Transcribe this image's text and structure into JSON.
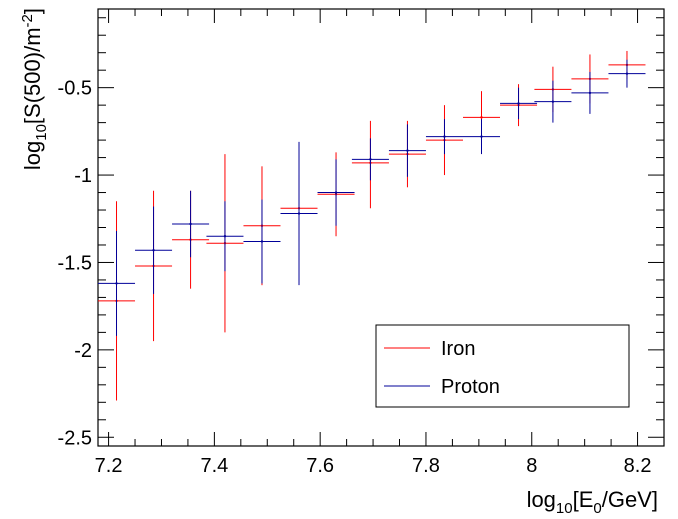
{
  "chart_data": {
    "type": "scatter",
    "xlabel": {
      "base": "log",
      "sub": "10",
      "main": "[E",
      "sub2": "0",
      "tail": "/GeV]"
    },
    "ylabel": {
      "base": "log",
      "sub": "10",
      "main": "[S(500)/m",
      "sup": "-2",
      "tail": "]"
    },
    "xlim": [
      7.18,
      8.25
    ],
    "ylim": [
      -2.55,
      -0.05
    ],
    "x_tick_labels": [
      "7.2",
      "7.4",
      "7.6",
      "7.8",
      "8",
      "8.2"
    ],
    "x_ticks": [
      7.2,
      7.4,
      7.6,
      7.8,
      8.0,
      8.2
    ],
    "y_tick_labels": [
      "-0.5",
      "-1",
      "-1.5",
      "-2",
      "-2.5"
    ],
    "y_ticks": [
      -0.5,
      -1.0,
      -1.5,
      -2.0,
      -2.5
    ],
    "grid": false,
    "legend_position": "bottom-right",
    "series": [
      {
        "name": "Iron",
        "color": "#ff0000",
        "points": [
          {
            "x": 7.215,
            "y": -1.72,
            "xerr": 0.035,
            "yerr_lo": 0.57,
            "yerr_hi": 0.57
          },
          {
            "x": 7.285,
            "y": -1.52,
            "xerr": 0.035,
            "yerr_lo": 0.43,
            "yerr_hi": 0.43
          },
          {
            "x": 7.355,
            "y": -1.37,
            "xerr": 0.035,
            "yerr_lo": 0.28,
            "yerr_hi": 0.28
          },
          {
            "x": 7.42,
            "y": -1.39,
            "xerr": 0.035,
            "yerr_lo": 0.51,
            "yerr_hi": 0.51
          },
          {
            "x": 7.49,
            "y": -1.29,
            "xerr": 0.035,
            "yerr_lo": 0.34,
            "yerr_hi": 0.34
          },
          {
            "x": 7.56,
            "y": -1.19,
            "xerr": 0.035,
            "yerr_lo": 0.19,
            "yerr_hi": 0.19
          },
          {
            "x": 7.63,
            "y": -1.11,
            "xerr": 0.035,
            "yerr_lo": 0.24,
            "yerr_hi": 0.24
          },
          {
            "x": 7.695,
            "y": -0.93,
            "xerr": 0.035,
            "yerr_lo": 0.26,
            "yerr_hi": 0.24
          },
          {
            "x": 7.765,
            "y": -0.88,
            "xerr": 0.035,
            "yerr_lo": 0.19,
            "yerr_hi": 0.19
          },
          {
            "x": 7.835,
            "y": -0.8,
            "xerr": 0.035,
            "yerr_lo": 0.2,
            "yerr_hi": 0.2
          },
          {
            "x": 7.905,
            "y": -0.67,
            "xerr": 0.035,
            "yerr_lo": 0.15,
            "yerr_hi": 0.15
          },
          {
            "x": 7.975,
            "y": -0.6,
            "xerr": 0.035,
            "yerr_lo": 0.12,
            "yerr_hi": 0.12
          },
          {
            "x": 8.04,
            "y": -0.51,
            "xerr": 0.035,
            "yerr_lo": 0.13,
            "yerr_hi": 0.13
          },
          {
            "x": 8.11,
            "y": -0.45,
            "xerr": 0.035,
            "yerr_lo": 0.14,
            "yerr_hi": 0.14
          },
          {
            "x": 8.18,
            "y": -0.37,
            "xerr": 0.035,
            "yerr_lo": 0.08,
            "yerr_hi": 0.08
          }
        ]
      },
      {
        "name": "Proton",
        "color": "#000099",
        "points": [
          {
            "x": 7.215,
            "y": -1.62,
            "xerr": 0.035,
            "yerr_lo": 0.3,
            "yerr_hi": 0.3
          },
          {
            "x": 7.285,
            "y": -1.43,
            "xerr": 0.035,
            "yerr_lo": 0.25,
            "yerr_hi": 0.25
          },
          {
            "x": 7.355,
            "y": -1.28,
            "xerr": 0.035,
            "yerr_lo": 0.19,
            "yerr_hi": 0.19
          },
          {
            "x": 7.42,
            "y": -1.35,
            "xerr": 0.035,
            "yerr_lo": 0.2,
            "yerr_hi": 0.2
          },
          {
            "x": 7.49,
            "y": -1.38,
            "xerr": 0.035,
            "yerr_lo": 0.24,
            "yerr_hi": 0.24
          },
          {
            "x": 7.56,
            "y": -1.22,
            "xerr": 0.035,
            "yerr_lo": 0.41,
            "yerr_hi": 0.41
          },
          {
            "x": 7.63,
            "y": -1.1,
            "xerr": 0.035,
            "yerr_lo": 0.19,
            "yerr_hi": 0.19
          },
          {
            "x": 7.695,
            "y": -0.91,
            "xerr": 0.035,
            "yerr_lo": 0.12,
            "yerr_hi": 0.12
          },
          {
            "x": 7.765,
            "y": -0.86,
            "xerr": 0.035,
            "yerr_lo": 0.15,
            "yerr_hi": 0.15
          },
          {
            "x": 7.835,
            "y": -0.78,
            "xerr": 0.035,
            "yerr_lo": 0.1,
            "yerr_hi": 0.1
          },
          {
            "x": 7.905,
            "y": -0.78,
            "xerr": 0.035,
            "yerr_lo": 0.1,
            "yerr_hi": 0.1
          },
          {
            "x": 7.975,
            "y": -0.59,
            "xerr": 0.035,
            "yerr_lo": 0.09,
            "yerr_hi": 0.09
          },
          {
            "x": 8.04,
            "y": -0.58,
            "xerr": 0.035,
            "yerr_lo": 0.12,
            "yerr_hi": 0.12
          },
          {
            "x": 8.11,
            "y": -0.53,
            "xerr": 0.035,
            "yerr_lo": 0.12,
            "yerr_hi": 0.12
          },
          {
            "x": 8.18,
            "y": -0.42,
            "xerr": 0.035,
            "yerr_lo": 0.08,
            "yerr_hi": 0.08
          }
        ]
      }
    ]
  }
}
